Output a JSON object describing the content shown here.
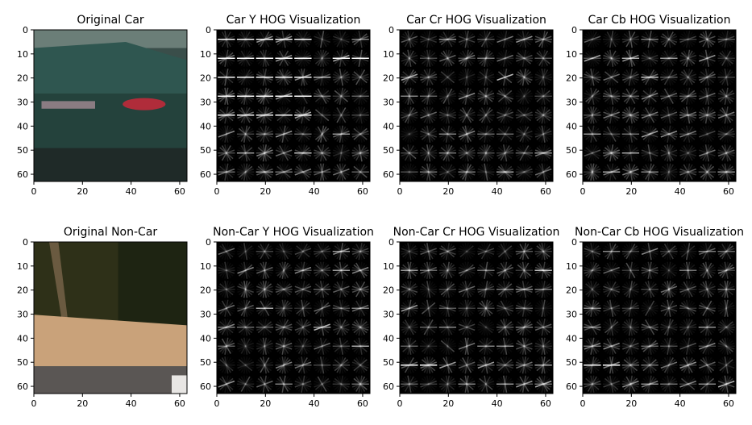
{
  "chart_data": [
    {
      "type": "heatmap",
      "title": "Original Car",
      "image": "original-car",
      "xticks": [
        0,
        20,
        40,
        60
      ],
      "yticks": [
        0,
        10,
        20,
        30,
        40,
        50,
        60
      ],
      "xlim": [
        0,
        63
      ],
      "ylim": [
        63,
        0
      ]
    },
    {
      "type": "heatmap",
      "title": "Car Y HOG Visualization",
      "image": "hog",
      "xticks": [
        0,
        20,
        40,
        60
      ],
      "yticks": [
        0,
        10,
        20,
        30,
        40,
        50,
        60
      ],
      "xlim": [
        0,
        63
      ],
      "ylim": [
        63,
        0
      ]
    },
    {
      "type": "heatmap",
      "title": "Car Cr HOG Visualization",
      "image": "hog",
      "xticks": [
        0,
        20,
        40,
        60
      ],
      "yticks": [
        0,
        10,
        20,
        30,
        40,
        50,
        60
      ],
      "xlim": [
        0,
        63
      ],
      "ylim": [
        63,
        0
      ]
    },
    {
      "type": "heatmap",
      "title": "Car Cb HOG Visualization",
      "image": "hog",
      "xticks": [
        0,
        20,
        40,
        60
      ],
      "yticks": [
        0,
        10,
        20,
        30,
        40,
        50,
        60
      ],
      "xlim": [
        0,
        63
      ],
      "ylim": [
        63,
        0
      ]
    },
    {
      "type": "heatmap",
      "title": "Original Non-Car",
      "image": "original-non-car",
      "xticks": [
        0,
        20,
        40,
        60
      ],
      "yticks": [
        0,
        10,
        20,
        30,
        40,
        50,
        60
      ],
      "xlim": [
        0,
        63
      ],
      "ylim": [
        63,
        0
      ]
    },
    {
      "type": "heatmap",
      "title": "Non-Car Y HOG Visualization",
      "image": "hog",
      "xticks": [
        0,
        20,
        40,
        60
      ],
      "yticks": [
        0,
        10,
        20,
        30,
        40,
        50,
        60
      ],
      "xlim": [
        0,
        63
      ],
      "ylim": [
        63,
        0
      ]
    },
    {
      "type": "heatmap",
      "title": "Non-Car Cr HOG Visualization",
      "image": "hog",
      "xticks": [
        0,
        20,
        40,
        60
      ],
      "yticks": [
        0,
        10,
        20,
        30,
        40,
        50,
        60
      ],
      "xlim": [
        0,
        63
      ],
      "ylim": [
        63,
        0
      ]
    },
    {
      "type": "heatmap",
      "title": "Non-Car Cb HOG Visualization",
      "image": "hog",
      "xticks": [
        0,
        20,
        40,
        60
      ],
      "yticks": [
        0,
        10,
        20,
        30,
        40,
        50,
        60
      ],
      "xlim": [
        0,
        63
      ],
      "ylim": [
        63,
        0
      ]
    }
  ],
  "colors": {
    "hog_background": "#000000",
    "hog_stroke": "#ffffff",
    "car_body": "#24423c",
    "road_sand": "#c9a27a",
    "trees": "#2e3018"
  }
}
